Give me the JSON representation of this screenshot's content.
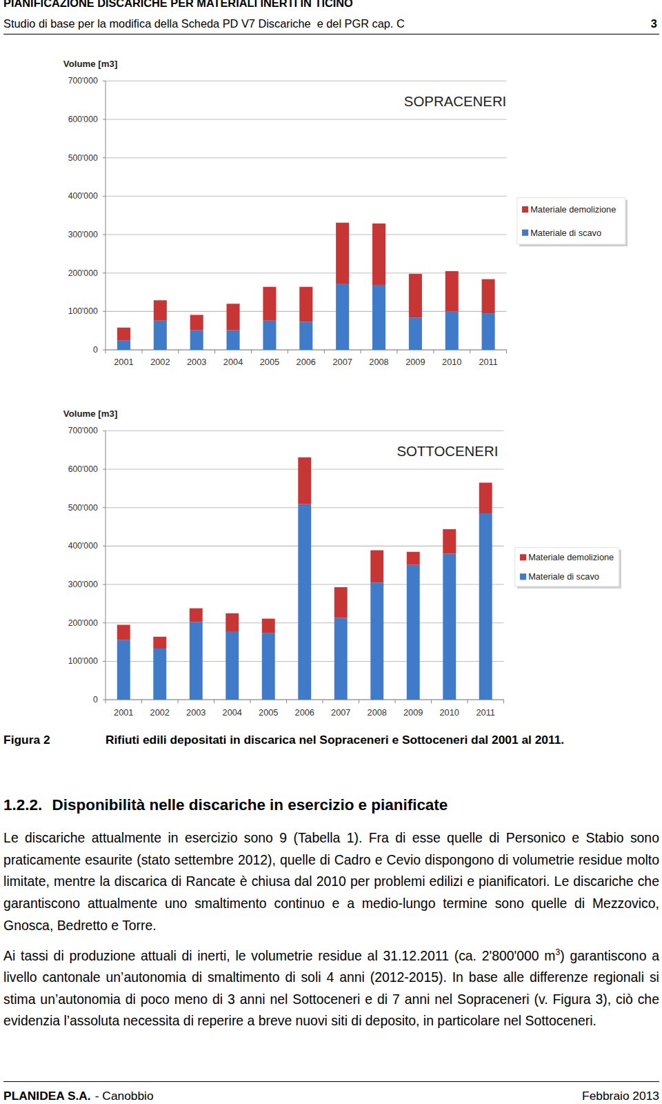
{
  "header": {
    "title": "PIANIFICAZIONE DISCARICHE PER MATERIALI INERTI IN TICINO",
    "subtitle": "Studio di base per la modifica della Scheda PD V7 Discariche  e del PGR cap. C",
    "page_number": "3"
  },
  "chart_data": [
    {
      "type": "bar",
      "stacked": true,
      "title": "SOPRACENERI",
      "y_label": "Volume [m3]",
      "categories": [
        "2001",
        "2002",
        "2003",
        "2004",
        "2005",
        "2006",
        "2007",
        "2008",
        "2009",
        "2010",
        "2011"
      ],
      "series": [
        {
          "name": "Materiale di scavo",
          "color": "#3f7bc8",
          "values": [
            24000,
            76000,
            51000,
            51000,
            76000,
            73000,
            171000,
            169000,
            84000,
            100000,
            95000
          ]
        },
        {
          "name": "Materiale demolizione",
          "color": "#c73535",
          "values": [
            34000,
            53000,
            40000,
            69000,
            88000,
            91000,
            160000,
            160000,
            114000,
            105000,
            89000
          ]
        }
      ],
      "ylim": [
        0,
        700000
      ],
      "yticks": [
        0,
        {
          "value": 100000,
          "label": "100'000"
        },
        {
          "value": 200000,
          "label": "200'000"
        },
        {
          "value": 300000,
          "label": "300'000"
        },
        {
          "value": 400000,
          "label": "400'000"
        },
        {
          "value": 500000,
          "label": "500'000"
        },
        {
          "value": 600000,
          "label": "600'000"
        },
        {
          "value": 700000,
          "label": "700'000"
        }
      ],
      "grid": true,
      "legend": "right"
    },
    {
      "type": "bar",
      "stacked": true,
      "title": "SOTTOCENERI",
      "y_label": "Volume [m3]",
      "categories": [
        "2001",
        "2002",
        "2003",
        "2004",
        "2005",
        "2006",
        "2007",
        "2008",
        "2009",
        "2010",
        "2011"
      ],
      "series": [
        {
          "name": "Materiale di scavo",
          "color": "#3f7bc8",
          "values": [
            156000,
            133000,
            202000,
            178000,
            173000,
            509000,
            213000,
            305000,
            351000,
            380000,
            485000
          ]
        },
        {
          "name": "Materiale demolizione",
          "color": "#c73535",
          "values": [
            39000,
            31000,
            36000,
            47000,
            38000,
            122000,
            80000,
            84000,
            34000,
            64000,
            80000
          ]
        }
      ],
      "ylim": [
        0,
        700000
      ],
      "yticks": [
        0,
        {
          "value": 100000,
          "label": "100'000"
        },
        {
          "value": 200000,
          "label": "200'000"
        },
        {
          "value": 300000,
          "label": "300'000"
        },
        {
          "value": 400000,
          "label": "400'000"
        },
        {
          "value": 500000,
          "label": "500'000"
        },
        {
          "value": 600000,
          "label": "600'000"
        },
        {
          "value": 700000,
          "label": "700'000"
        }
      ],
      "grid": true,
      "legend": "right"
    }
  ],
  "figure": {
    "label": "Figura 2",
    "caption": "Rifiuti edili depositati in discarica nel Sopraceneri e Sottoceneri dal 2001 al 2011."
  },
  "section": {
    "number": "1.2.2.",
    "title": "Disponibilità nelle discariche in esercizio e pianificate",
    "paragraphs": [
      [
        {
          "text": "Le discariche attualmente in esercizio sono 9 (Tabella 1). Fra di esse quelle di Personico e Stabio sono praticamente esaurite (stato settembre 2012), quelle di Cadro e Cevio dispongono di volumetrie residue molto limitate, mentre la discarica di Rancate è chiusa dal 2010 per problemi edilizi e pianificatori. Le discariche che garantiscono attualmente uno smaltimento continuo e a medio-lungo termine sono quelle di Mezzovico, Gnosca, Bedretto e Torre."
        }
      ],
      [
        {
          "text": "Ai tassi di produzione attuali di inerti, le volumetrie residue al 31.12.2011 (ca. 2'800'000 m"
        },
        {
          "sup": "3"
        },
        {
          "text": ") garantiscono a livello cantonale un’autonomia di smaltimento di soli 4 anni (2012-2015). In base alle differenze regionali si stima un’autonomia di poco meno di 3 anni nel Sottoceneri e di 7 anni nel Sopraceneri (v. Figura 3), ciò che evidenzia l’assoluta necessita di reperire a breve nuovi siti di deposito, in particolare nel Sottoceneri."
        }
      ]
    ]
  },
  "footer": {
    "company": "PLANIDEA S.A.",
    "place": "- Canobbio",
    "date": "Febbraio 2013"
  }
}
